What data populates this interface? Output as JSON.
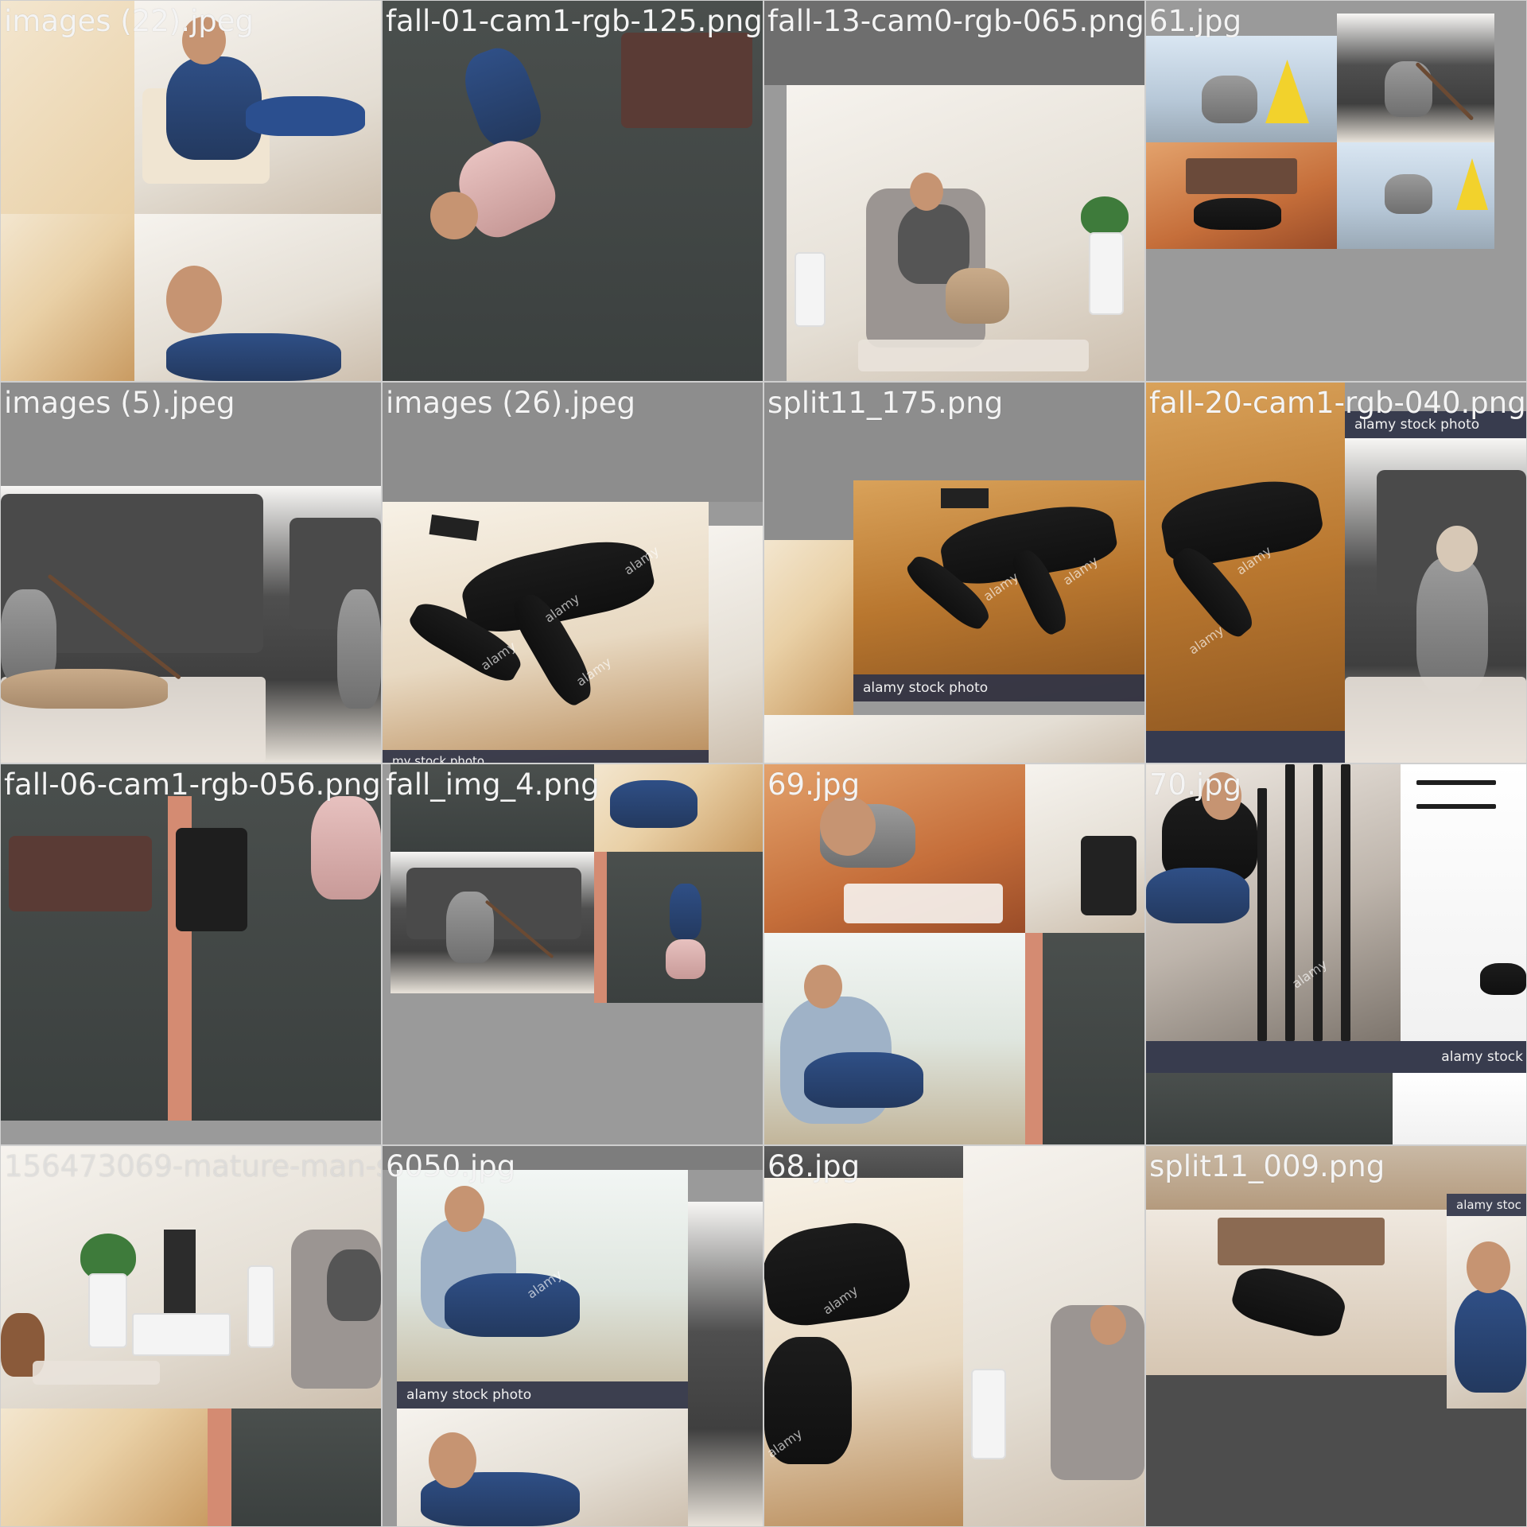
{
  "tiles": [
    {
      "caption": "images (22).jpeg"
    },
    {
      "caption": "fall-01-cam1-rgb-125.png"
    },
    {
      "caption": "fall-13-cam0-rgb-065.png"
    },
    {
      "caption": "61.jpg"
    },
    {
      "caption": "images (5).jpeg"
    },
    {
      "caption": "images (26).jpeg"
    },
    {
      "caption": "split11_175.png"
    },
    {
      "caption": "fall-20-cam1-rgb-040.png"
    },
    {
      "caption": "fall-06-cam1-rgb-056.png"
    },
    {
      "caption": "fall_img_4.png"
    },
    {
      "caption": "69.jpg"
    },
    {
      "caption": "70.jpg"
    },
    {
      "caption": "156473069-mature-man-sitting-in-armch"
    },
    {
      "caption": "6050.jpg"
    },
    {
      "caption": "68.jpg"
    },
    {
      "caption": "split11_009.png"
    }
  ],
  "overlays": {
    "stock_photo": "alamy stock photo",
    "stock_photo_short": "alamy stoc",
    "stock_photo_stock": "alamy stock",
    "watermark": "alamy",
    "cut_text_a": "my stock photo",
    "cut_text_b": "ck photo"
  }
}
